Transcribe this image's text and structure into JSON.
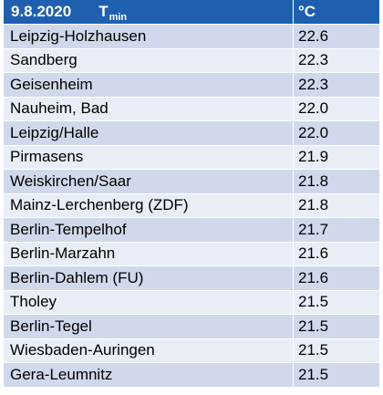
{
  "header": {
    "date": "9.8.2020",
    "metric": "T",
    "metric_sub": "min",
    "unit": "°C"
  },
  "rows": [
    {
      "station": "Leipzig-Holzhausen",
      "value": "22.6"
    },
    {
      "station": "Sandberg",
      "value": "22.3"
    },
    {
      "station": "Geisenheim",
      "value": "22.3"
    },
    {
      "station": "Nauheim, Bad",
      "value": "22.0"
    },
    {
      "station": "Leipzig/Halle",
      "value": "22.0"
    },
    {
      "station": "Pirmasens",
      "value": "21.9"
    },
    {
      "station": "Weiskirchen/Saar",
      "value": "21.8"
    },
    {
      "station": "Mainz-Lerchenberg (ZDF)",
      "value": "21.8"
    },
    {
      "station": "Berlin-Tempelhof",
      "value": "21.7"
    },
    {
      "station": "Berlin-Marzahn",
      "value": "21.6"
    },
    {
      "station": "Berlin-Dahlem (FU)",
      "value": "21.6"
    },
    {
      "station": "Tholey",
      "value": "21.5"
    },
    {
      "station": "Berlin-Tegel",
      "value": "21.5"
    },
    {
      "station": "Wiesbaden-Auringen",
      "value": "21.5"
    },
    {
      "station": "Gera-Leumnitz",
      "value": "21.5"
    }
  ],
  "colors": {
    "header_bg": "#1f5fb0",
    "row_odd_bg": "#d0d9ec",
    "row_even_bg": "#e9edf6"
  }
}
